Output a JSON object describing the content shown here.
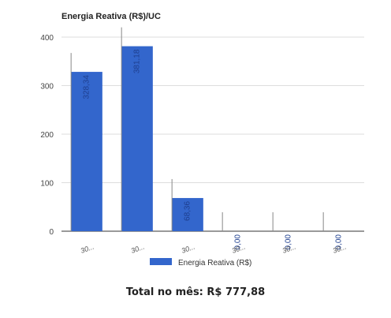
{
  "chart_data": {
    "type": "bar",
    "title": "Energia Reativa (R$)/UC",
    "categories": [
      "30...",
      "30...",
      "30...",
      "30...",
      "30...",
      "30..."
    ],
    "series": [
      {
        "name": "Energia Reativa (R$)",
        "color": "#3366cc",
        "values": [
          328.34,
          381.18,
          68.36,
          0.0,
          0.0,
          0.0
        ],
        "labels": [
          "328,34",
          "381,18",
          "68,36",
          "0,00",
          "0,00",
          "0,00"
        ]
      }
    ],
    "ylim": [
      0,
      400
    ],
    "yticks": [
      0,
      100,
      200,
      300,
      400
    ],
    "grid": true,
    "legend": "bottom"
  },
  "summary": {
    "total_text": "Total no mês: R$ 777,88"
  }
}
